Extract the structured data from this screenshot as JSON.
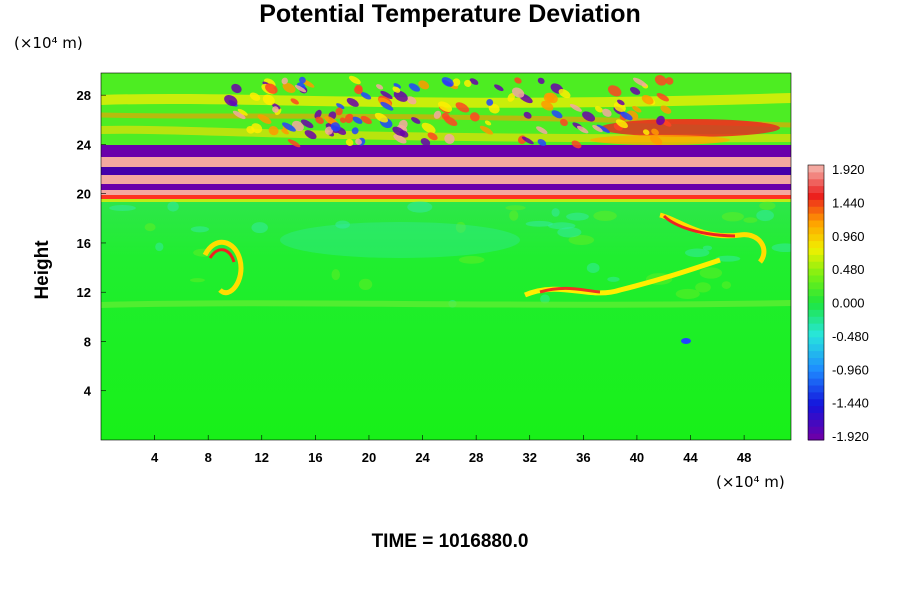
{
  "chart_data": {
    "type": "heatmap",
    "title": "Potential Temperature Deviation",
    "ylabel": "Height",
    "y_unit": "(×10⁴ m)",
    "x_unit": "(×10⁴ m)",
    "footer": "TIME = 1016880.0",
    "x_ticks": [
      "4",
      "8",
      "12",
      "16",
      "20",
      "24",
      "28",
      "32",
      "36",
      "40",
      "44",
      "48"
    ],
    "y_ticks": [
      "4",
      "8",
      "12",
      "16",
      "20",
      "24",
      "28"
    ],
    "xlim": [
      0,
      51.5
    ],
    "ylim": [
      0,
      29.8
    ],
    "colorbar": {
      "range": [
        -1.92,
        1.92
      ],
      "labels": [
        "1.920",
        "1.440",
        "0.960",
        "0.480",
        "0.000",
        "-0.480",
        "-0.960",
        "-1.440",
        "-1.920"
      ]
    }
  }
}
